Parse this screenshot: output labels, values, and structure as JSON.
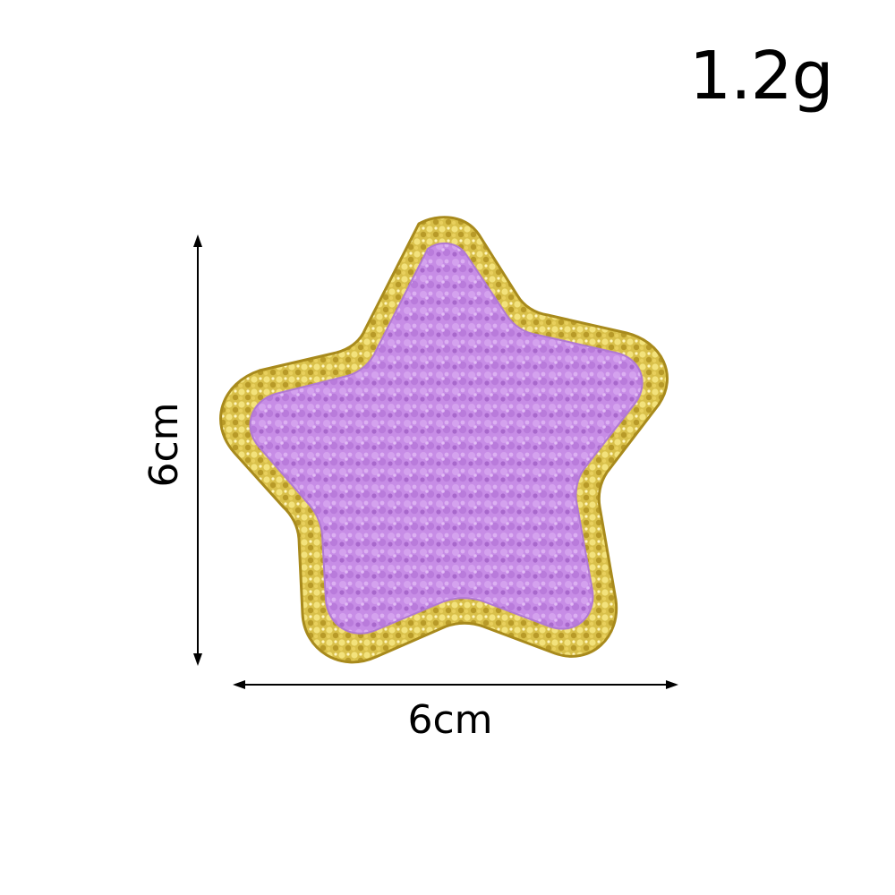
{
  "weight": {
    "text": "1.2g"
  },
  "dimensions": {
    "height_text": "6cm",
    "width_text": "6cm"
  },
  "product": {
    "shape": "star",
    "colors": {
      "border": "#d9c04a",
      "border_highlight": "#f3e27c",
      "border_shadow": "#a88a1c",
      "fill": "#c78de6",
      "fill_highlight": "#dcb0f2",
      "fill_shadow": "#a868cc"
    }
  },
  "dimension_lines": {
    "color": "#000000"
  }
}
